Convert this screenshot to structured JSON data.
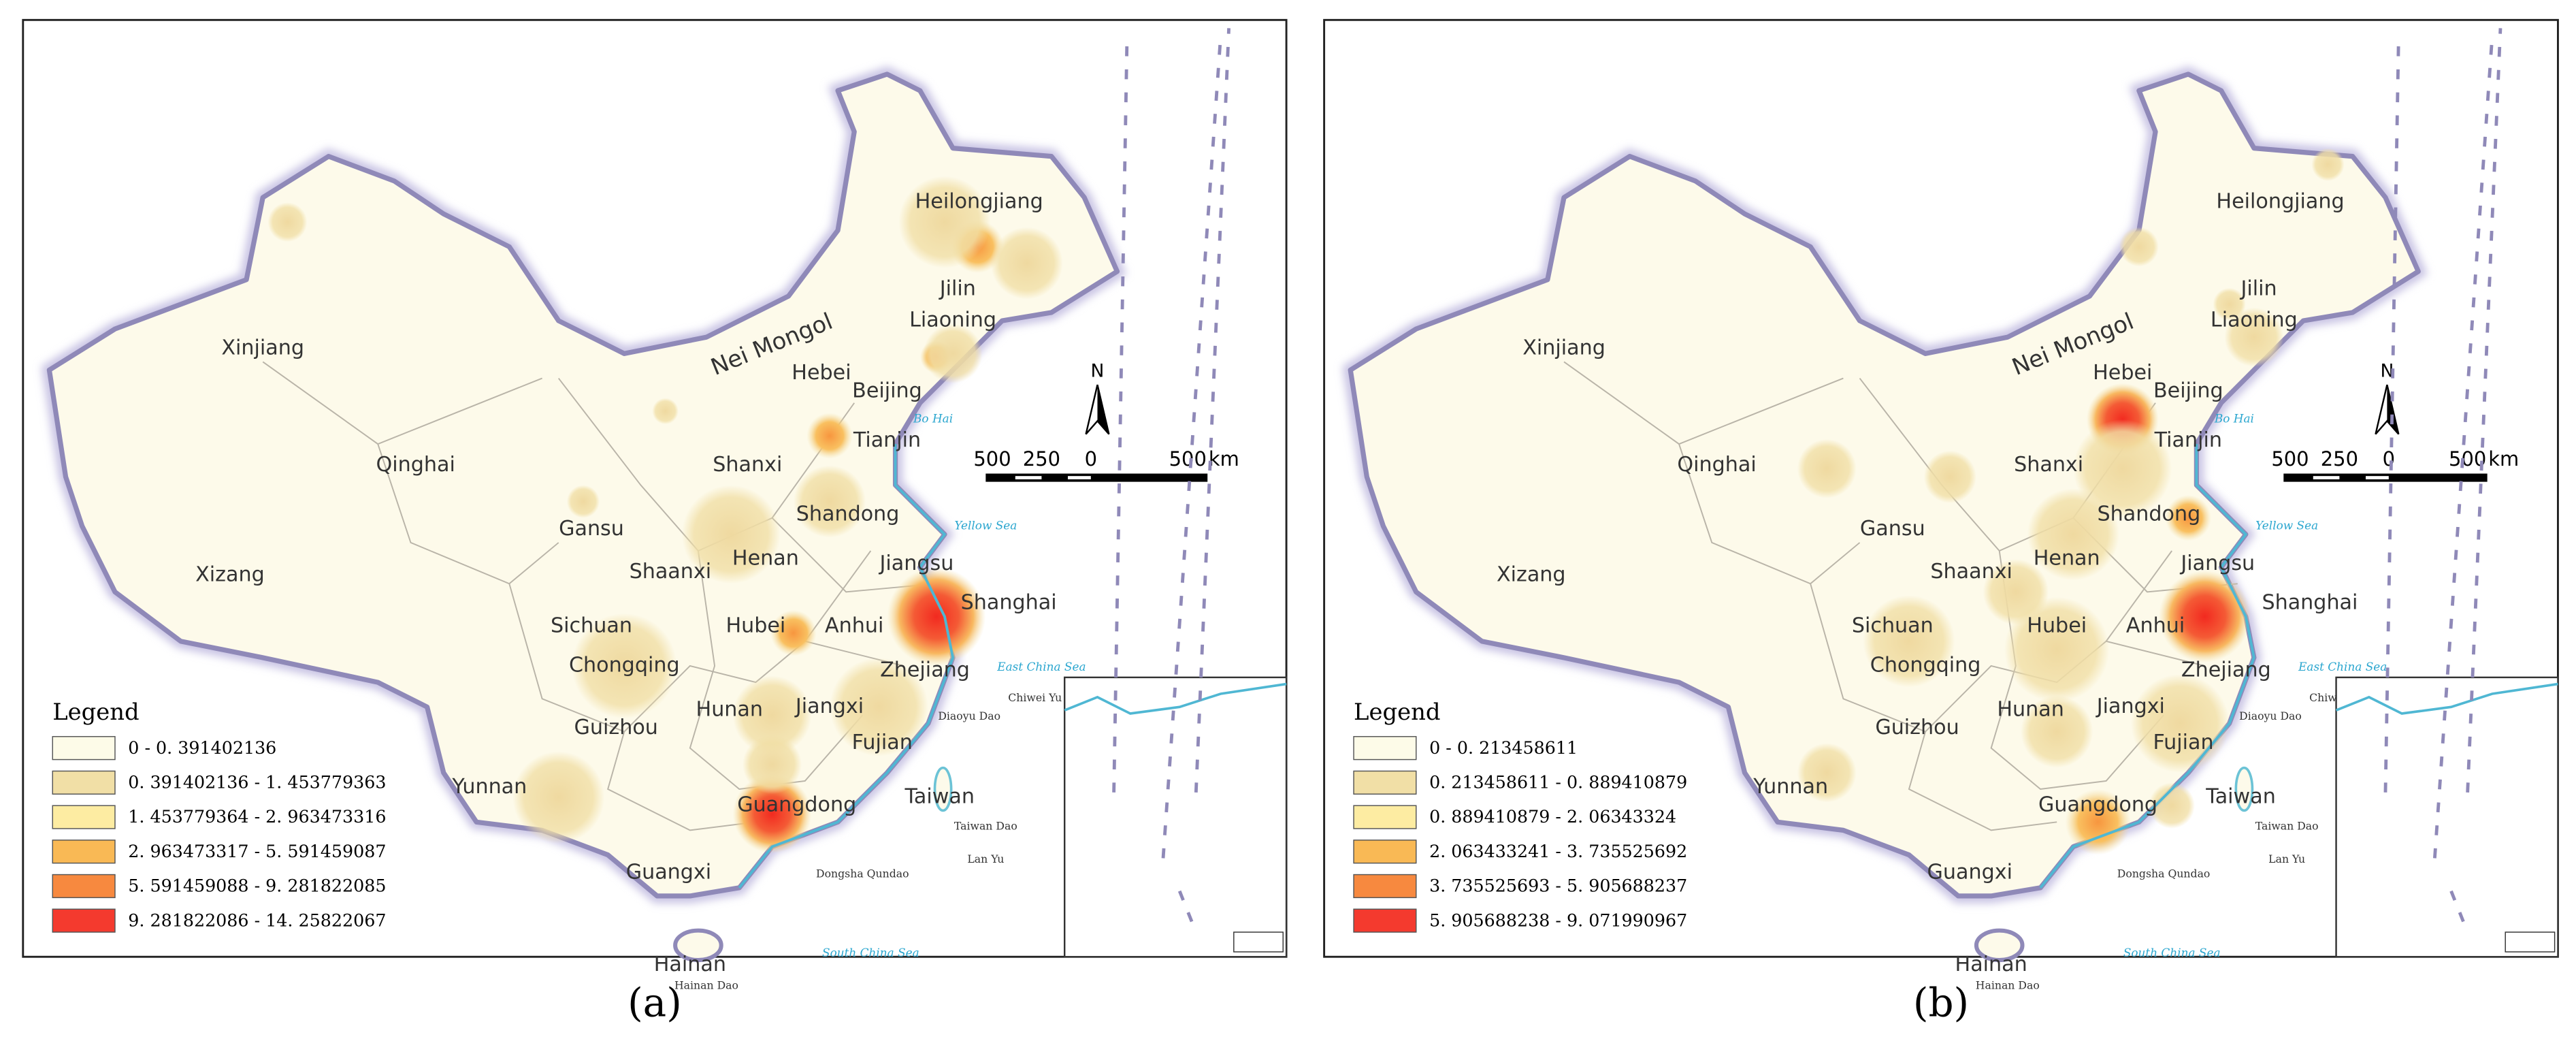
{
  "provinces": [
    "Heilongjiang",
    "Jilin",
    "Liaoning",
    "Nei Mongol",
    "Xinjiang",
    "Hebei",
    "Beijing",
    "Tianjin",
    "Shanxi",
    "Qinghai",
    "Shandong",
    "Gansu",
    "Shaanxi",
    "Henan",
    "Jiangsu",
    "Xizang",
    "Shanghai",
    "Sichuan",
    "Hubei",
    "Anhui",
    "Chongqing",
    "Zhejiang",
    "Hunan",
    "Jiangxi",
    "Guizhou",
    "Fujian",
    "Yunnan",
    "Guangdong",
    "Taiwan",
    "Guangxi",
    "Hainan"
  ],
  "seas_and_islands": [
    "Bo Hai",
    "Yellow Sea",
    "East China Sea",
    "Taiwan Dao",
    "Dongsha Qundao",
    "Lan Yu",
    "South China Sea",
    "Hainan Dao",
    "Diaoyu Dao",
    "Chiwei Yu"
  ],
  "north": "N",
  "scale_bar": {
    "labels": [
      "500",
      "250",
      "0",
      "500"
    ],
    "unit": "km"
  },
  "panels": [
    {
      "caption": "(a)",
      "legend_title": "Legend",
      "legend": [
        {
          "label": "0 - 0. 391402136",
          "color": "#fdfbe8"
        },
        {
          "label": "0. 391402136 - 1. 453779363",
          "color": "#f1dfa6"
        },
        {
          "label": "1. 453779364 - 2. 963473316",
          "color": "#fdeca2"
        },
        {
          "label": "2. 963473317 - 5. 591459087",
          "color": "#f9b955"
        },
        {
          "label": "5. 591459088 - 9. 281822085",
          "color": "#f7893f"
        },
        {
          "label": "9. 281822086 - 14. 25822067",
          "color": "#f43a2e"
        }
      ]
    },
    {
      "caption": "(b)",
      "legend_title": "Legend",
      "legend": [
        {
          "label": "0 - 0. 213458611",
          "color": "#fdfbe8"
        },
        {
          "label": "0. 213458611 - 0. 889410879",
          "color": "#f1dfa6"
        },
        {
          "label": "0. 889410879 - 2. 06343324",
          "color": "#fdeca2"
        },
        {
          "label": "2. 063433241 - 3. 735525692",
          "color": "#f9b955"
        },
        {
          "label": "3. 735525693 - 5. 905688237",
          "color": "#f7893f"
        },
        {
          "label": "5. 905688238 - 9. 071990967",
          "color": "#f43a2e"
        }
      ]
    }
  ]
}
